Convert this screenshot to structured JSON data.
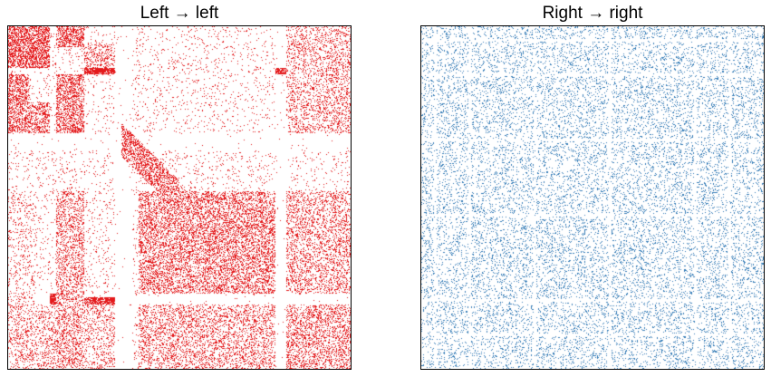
{
  "chart_data": [
    {
      "type": "heatmap",
      "subtype": "adjacency-spy-plot",
      "title": "Left → left",
      "xlabel": "",
      "ylabel": "",
      "ticks": "none",
      "grid": false,
      "dot_color": "#e41a1c",
      "n_nodes": 200,
      "structure": "block community structure with dense diagonal and off-diagonal blocks and empty bands"
    },
    {
      "type": "heatmap",
      "subtype": "adjacency-spy-plot",
      "title": "Right → right",
      "xlabel": "",
      "ylabel": "",
      "ticks": "none",
      "grid": false,
      "dot_color": "#377eb8",
      "n_nodes": 200,
      "structure": "roughly uniform random connectivity"
    }
  ]
}
